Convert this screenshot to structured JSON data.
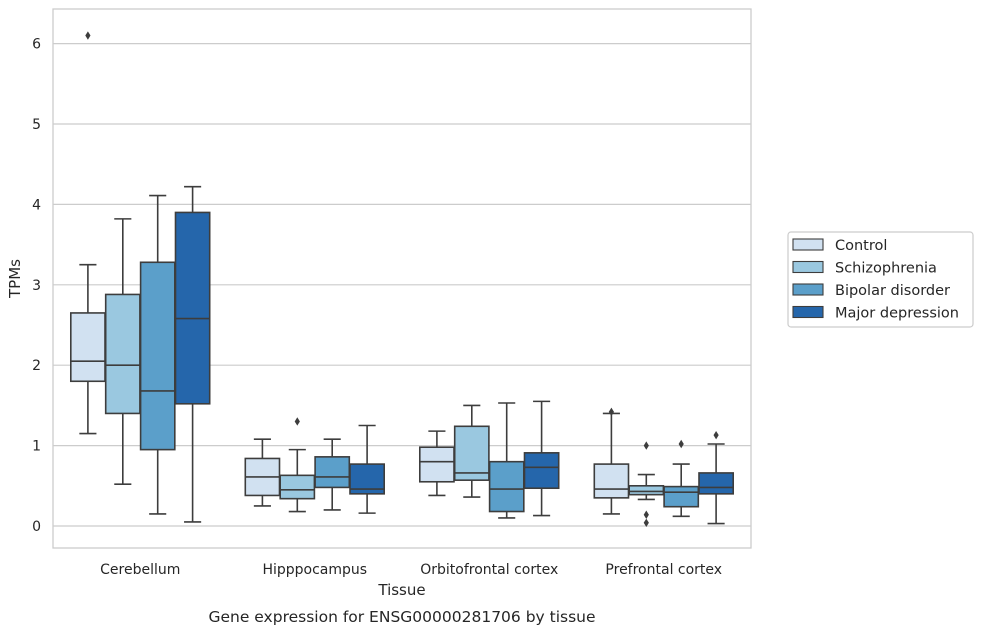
{
  "chart_data": {
    "type": "box",
    "title": "",
    "caption": "Gene expression for ENSG00000281706 by tissue",
    "xlabel": "Tissue",
    "ylabel": "TPMs",
    "ylim": [
      -0.28,
      6.42
    ],
    "yticks": [
      0,
      1,
      2,
      3,
      4,
      5,
      6
    ],
    "grid": "horizontal",
    "legend_position": "right",
    "categories": [
      "Cerebellum",
      "Hipppocampus",
      "Orbitofrontal cortex",
      "Prefrontal cortex"
    ],
    "series": [
      {
        "name": "Control",
        "color": "#d1e1f1",
        "boxes": [
          {
            "whislo": 1.15,
            "q1": 1.8,
            "med": 2.05,
            "q3": 2.65,
            "whishi": 3.25,
            "fliers": [
              6.1
            ]
          },
          {
            "whislo": 0.25,
            "q1": 0.38,
            "med": 0.61,
            "q3": 0.84,
            "whishi": 1.08,
            "fliers": []
          },
          {
            "whislo": 0.38,
            "q1": 0.55,
            "med": 0.8,
            "q3": 0.98,
            "whishi": 1.18,
            "fliers": []
          },
          {
            "whislo": 0.15,
            "q1": 0.35,
            "med": 0.46,
            "q3": 0.77,
            "whishi": 1.4,
            "fliers": [
              1.42
            ]
          }
        ]
      },
      {
        "name": "Schizophrenia",
        "color": "#9ac8e0",
        "boxes": [
          {
            "whislo": 0.52,
            "q1": 1.4,
            "med": 2.0,
            "q3": 2.88,
            "whishi": 3.82,
            "fliers": []
          },
          {
            "whislo": 0.18,
            "q1": 0.34,
            "med": 0.45,
            "q3": 0.63,
            "whishi": 0.95,
            "fliers": [
              1.3
            ]
          },
          {
            "whislo": 0.36,
            "q1": 0.57,
            "med": 0.66,
            "q3": 1.24,
            "whishi": 1.5,
            "fliers": []
          },
          {
            "whislo": 0.33,
            "q1": 0.39,
            "med": 0.43,
            "q3": 0.5,
            "whishi": 0.64,
            "fliers": [
              1.0,
              0.14,
              0.04
            ]
          }
        ]
      },
      {
        "name": "Bipolar disorder",
        "color": "#5b9fca",
        "boxes": [
          {
            "whislo": 0.15,
            "q1": 0.95,
            "med": 1.68,
            "q3": 3.28,
            "whishi": 4.11,
            "fliers": []
          },
          {
            "whislo": 0.2,
            "q1": 0.48,
            "med": 0.61,
            "q3": 0.86,
            "whishi": 1.08,
            "fliers": []
          },
          {
            "whislo": 0.1,
            "q1": 0.18,
            "med": 0.46,
            "q3": 0.8,
            "whishi": 1.53,
            "fliers": []
          },
          {
            "whislo": 0.12,
            "q1": 0.24,
            "med": 0.42,
            "q3": 0.49,
            "whishi": 0.77,
            "fliers": [
              1.02
            ]
          }
        ]
      },
      {
        "name": "Major depression",
        "color": "#2566ab",
        "boxes": [
          {
            "whislo": 0.05,
            "q1": 1.52,
            "med": 2.58,
            "q3": 3.9,
            "whishi": 4.22,
            "fliers": []
          },
          {
            "whislo": 0.16,
            "q1": 0.4,
            "med": 0.46,
            "q3": 0.77,
            "whishi": 1.25,
            "fliers": []
          },
          {
            "whislo": 0.13,
            "q1": 0.47,
            "med": 0.73,
            "q3": 0.91,
            "whishi": 1.55,
            "fliers": []
          },
          {
            "whislo": 0.03,
            "q1": 0.4,
            "med": 0.48,
            "q3": 0.66,
            "whishi": 1.02,
            "fliers": [
              1.13
            ]
          }
        ]
      }
    ]
  }
}
